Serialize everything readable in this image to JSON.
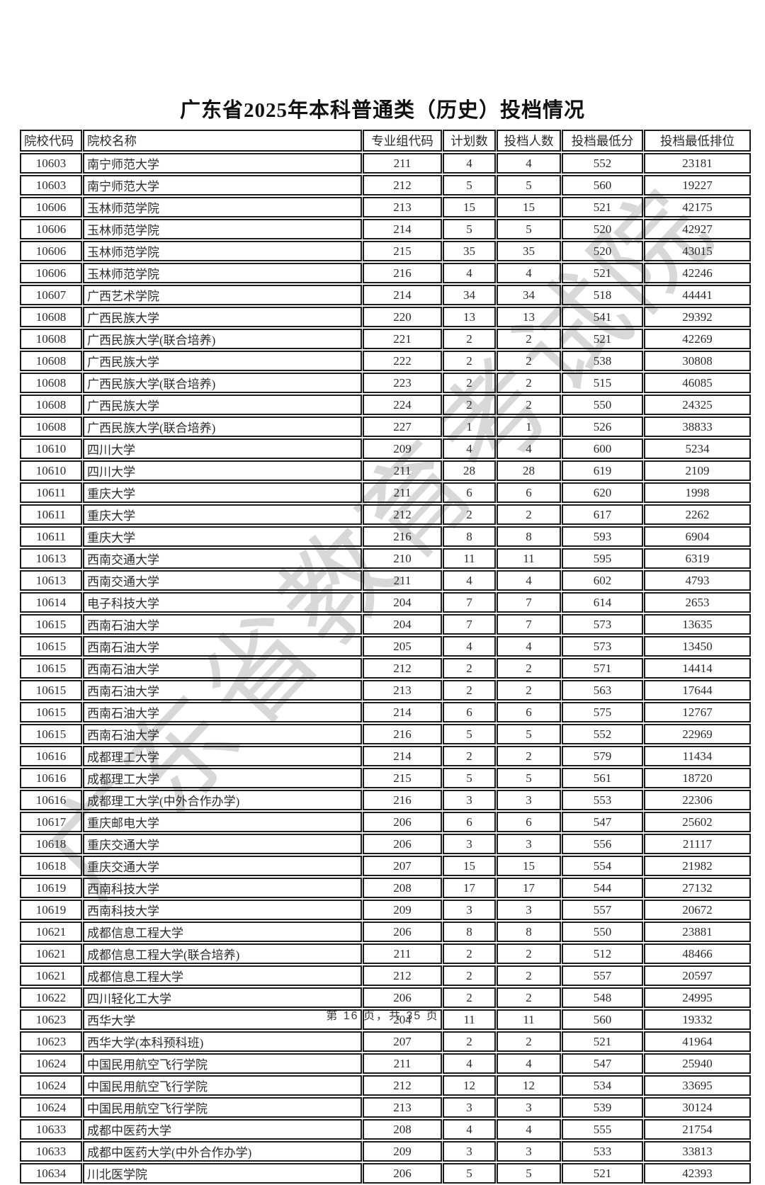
{
  "page": {
    "title": "广东省2025年本科普通类（历史）投档情况",
    "footer": "第 16 页，共 35 页",
    "watermark": "广东省教育考试院"
  },
  "colors": {
    "border": "#1c1c1c",
    "text": "#2b2b2b",
    "watermark": "#c9c9c9"
  },
  "table": {
    "columns": [
      "院校代码",
      "院校名称",
      "专业组代码",
      "计划数",
      "投档人数",
      "投档最低分",
      "投档最低排位"
    ],
    "column_keys": [
      "college-code",
      "college-name",
      "group-code",
      "plan-count",
      "filed-count",
      "min-score",
      "min-rank"
    ],
    "rows": [
      [
        "10603",
        "南宁师范大学",
        "211",
        "4",
        "4",
        "552",
        "23181"
      ],
      [
        "10603",
        "南宁师范大学",
        "212",
        "5",
        "5",
        "560",
        "19227"
      ],
      [
        "10606",
        "玉林师范学院",
        "213",
        "15",
        "15",
        "521",
        "42175"
      ],
      [
        "10606",
        "玉林师范学院",
        "214",
        "5",
        "5",
        "520",
        "42927"
      ],
      [
        "10606",
        "玉林师范学院",
        "215",
        "35",
        "35",
        "520",
        "43015"
      ],
      [
        "10606",
        "玉林师范学院",
        "216",
        "4",
        "4",
        "521",
        "42246"
      ],
      [
        "10607",
        "广西艺术学院",
        "214",
        "34",
        "34",
        "518",
        "44441"
      ],
      [
        "10608",
        "广西民族大学",
        "220",
        "13",
        "13",
        "541",
        "29392"
      ],
      [
        "10608",
        "广西民族大学(联合培养)",
        "221",
        "2",
        "2",
        "521",
        "42269"
      ],
      [
        "10608",
        "广西民族大学",
        "222",
        "2",
        "2",
        "538",
        "30808"
      ],
      [
        "10608",
        "广西民族大学(联合培养)",
        "223",
        "2",
        "2",
        "515",
        "46085"
      ],
      [
        "10608",
        "广西民族大学",
        "224",
        "2",
        "2",
        "550",
        "24325"
      ],
      [
        "10608",
        "广西民族大学(联合培养)",
        "227",
        "1",
        "1",
        "526",
        "38833"
      ],
      [
        "10610",
        "四川大学",
        "209",
        "4",
        "4",
        "600",
        "5234"
      ],
      [
        "10610",
        "四川大学",
        "211",
        "28",
        "28",
        "619",
        "2109"
      ],
      [
        "10611",
        "重庆大学",
        "211",
        "6",
        "6",
        "620",
        "1998"
      ],
      [
        "10611",
        "重庆大学",
        "212",
        "2",
        "2",
        "617",
        "2262"
      ],
      [
        "10611",
        "重庆大学",
        "216",
        "8",
        "8",
        "593",
        "6904"
      ],
      [
        "10613",
        "西南交通大学",
        "210",
        "11",
        "11",
        "595",
        "6319"
      ],
      [
        "10613",
        "西南交通大学",
        "211",
        "4",
        "4",
        "602",
        "4793"
      ],
      [
        "10614",
        "电子科技大学",
        "204",
        "7",
        "7",
        "614",
        "2653"
      ],
      [
        "10615",
        "西南石油大学",
        "204",
        "7",
        "7",
        "573",
        "13635"
      ],
      [
        "10615",
        "西南石油大学",
        "205",
        "4",
        "4",
        "573",
        "13450"
      ],
      [
        "10615",
        "西南石油大学",
        "212",
        "2",
        "2",
        "571",
        "14414"
      ],
      [
        "10615",
        "西南石油大学",
        "213",
        "2",
        "2",
        "563",
        "17644"
      ],
      [
        "10615",
        "西南石油大学",
        "214",
        "6",
        "6",
        "575",
        "12767"
      ],
      [
        "10615",
        "西南石油大学",
        "216",
        "5",
        "5",
        "552",
        "22969"
      ],
      [
        "10616",
        "成都理工大学",
        "214",
        "2",
        "2",
        "579",
        "11434"
      ],
      [
        "10616",
        "成都理工大学",
        "215",
        "5",
        "5",
        "561",
        "18720"
      ],
      [
        "10616",
        "成都理工大学(中外合作办学)",
        "216",
        "3",
        "3",
        "553",
        "22306"
      ],
      [
        "10617",
        "重庆邮电大学",
        "206",
        "6",
        "6",
        "547",
        "25602"
      ],
      [
        "10618",
        "重庆交通大学",
        "206",
        "3",
        "3",
        "556",
        "21117"
      ],
      [
        "10618",
        "重庆交通大学",
        "207",
        "15",
        "15",
        "554",
        "21982"
      ],
      [
        "10619",
        "西南科技大学",
        "208",
        "17",
        "17",
        "544",
        "27132"
      ],
      [
        "10619",
        "西南科技大学",
        "209",
        "3",
        "3",
        "557",
        "20672"
      ],
      [
        "10621",
        "成都信息工程大学",
        "206",
        "8",
        "8",
        "550",
        "23881"
      ],
      [
        "10621",
        "成都信息工程大学(联合培养)",
        "211",
        "2",
        "2",
        "512",
        "48466"
      ],
      [
        "10621",
        "成都信息工程大学",
        "212",
        "2",
        "2",
        "557",
        "20597"
      ],
      [
        "10622",
        "四川轻化工大学",
        "206",
        "2",
        "2",
        "548",
        "24995"
      ],
      [
        "10623",
        "西华大学",
        "204",
        "11",
        "11",
        "560",
        "19332"
      ],
      [
        "10623",
        "西华大学(本科预科班)",
        "207",
        "2",
        "2",
        "521",
        "41964"
      ],
      [
        "10624",
        "中国民用航空飞行学院",
        "211",
        "4",
        "4",
        "547",
        "25940"
      ],
      [
        "10624",
        "中国民用航空飞行学院",
        "212",
        "12",
        "12",
        "534",
        "33695"
      ],
      [
        "10624",
        "中国民用航空飞行学院",
        "213",
        "3",
        "3",
        "539",
        "30124"
      ],
      [
        "10633",
        "成都中医药大学",
        "208",
        "4",
        "4",
        "555",
        "21754"
      ],
      [
        "10633",
        "成都中医药大学(中外合作办学)",
        "209",
        "3",
        "3",
        "533",
        "33813"
      ],
      [
        "10634",
        "川北医学院",
        "206",
        "5",
        "5",
        "521",
        "42393"
      ]
    ]
  }
}
